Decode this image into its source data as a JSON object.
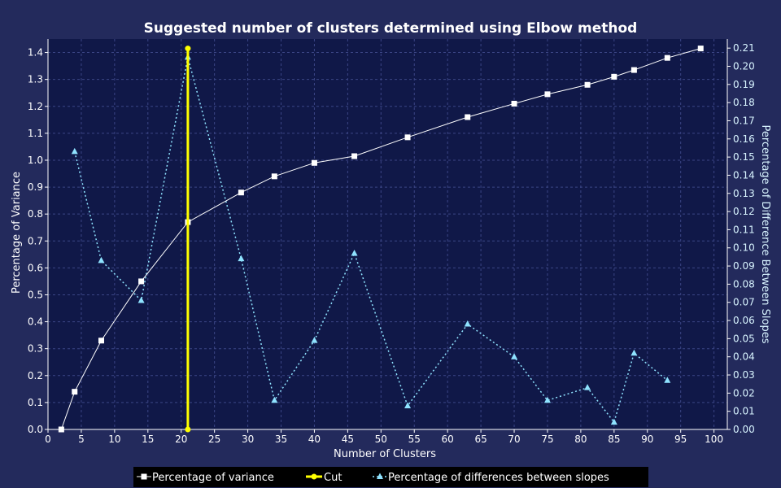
{
  "chart_data": {
    "type": "line",
    "title": "Suggested number of clusters determined using Elbow method",
    "xlabel": "Number of Clusters",
    "ylabel": "Percentage of Variance",
    "y2label": "Percentage of Difference Between Slopes",
    "xlim": [
      0,
      102
    ],
    "ylim": [
      0,
      1.45
    ],
    "y2lim": [
      0,
      0.215
    ],
    "xticks": [
      0,
      5,
      10,
      15,
      20,
      25,
      30,
      35,
      40,
      45,
      50,
      55,
      60,
      65,
      70,
      75,
      80,
      85,
      90,
      95,
      100
    ],
    "yticks": [
      0.0,
      0.1,
      0.2,
      0.3,
      0.4,
      0.5,
      0.6,
      0.7,
      0.8,
      0.9,
      1.0,
      1.1,
      1.2,
      1.3,
      1.4
    ],
    "y2ticks": [
      0.0,
      0.01,
      0.02,
      0.03,
      0.04,
      0.05,
      0.06,
      0.07,
      0.08,
      0.09,
      0.1,
      0.11,
      0.12,
      0.13,
      0.14,
      0.15,
      0.16,
      0.17,
      0.18,
      0.19,
      0.2,
      0.21
    ],
    "grid": true,
    "legend_position": "bottom",
    "series": [
      {
        "name": "Percentage of variance",
        "axis": "left",
        "style": "solid",
        "marker": "square",
        "color": "#ffffff",
        "x": [
          2,
          4,
          8,
          14,
          21,
          29,
          34,
          40,
          46,
          54,
          63,
          70,
          75,
          81,
          85,
          88,
          93,
          98
        ],
        "y": [
          0.0,
          0.14,
          0.33,
          0.55,
          0.77,
          0.88,
          0.94,
          0.99,
          1.015,
          1.085,
          1.16,
          1.21,
          1.245,
          1.28,
          1.31,
          1.335,
          1.38,
          1.415
        ]
      },
      {
        "name": "Cut",
        "axis": "left",
        "style": "solid",
        "marker": "circle",
        "color": "#ffff00",
        "x": [
          21,
          21
        ],
        "y": [
          0.0,
          1.415
        ]
      },
      {
        "name": "Percentage of differences between slopes",
        "axis": "right",
        "style": "dotted",
        "marker": "triangle",
        "color": "#8fe3ff",
        "x": [
          4,
          8,
          14,
          21,
          29,
          34,
          40,
          46,
          54,
          63,
          70,
          75,
          81,
          85,
          88,
          93
        ],
        "y": [
          0.153,
          0.093,
          0.071,
          0.205,
          0.094,
          0.016,
          0.049,
          0.097,
          0.013,
          0.058,
          0.04,
          0.016,
          0.023,
          0.004,
          0.042,
          0.027
        ]
      }
    ]
  },
  "colors": {
    "page_background": "#232a5c",
    "plot_background": "#101848",
    "grid": "#3b4585",
    "legend_background": "#000000"
  }
}
